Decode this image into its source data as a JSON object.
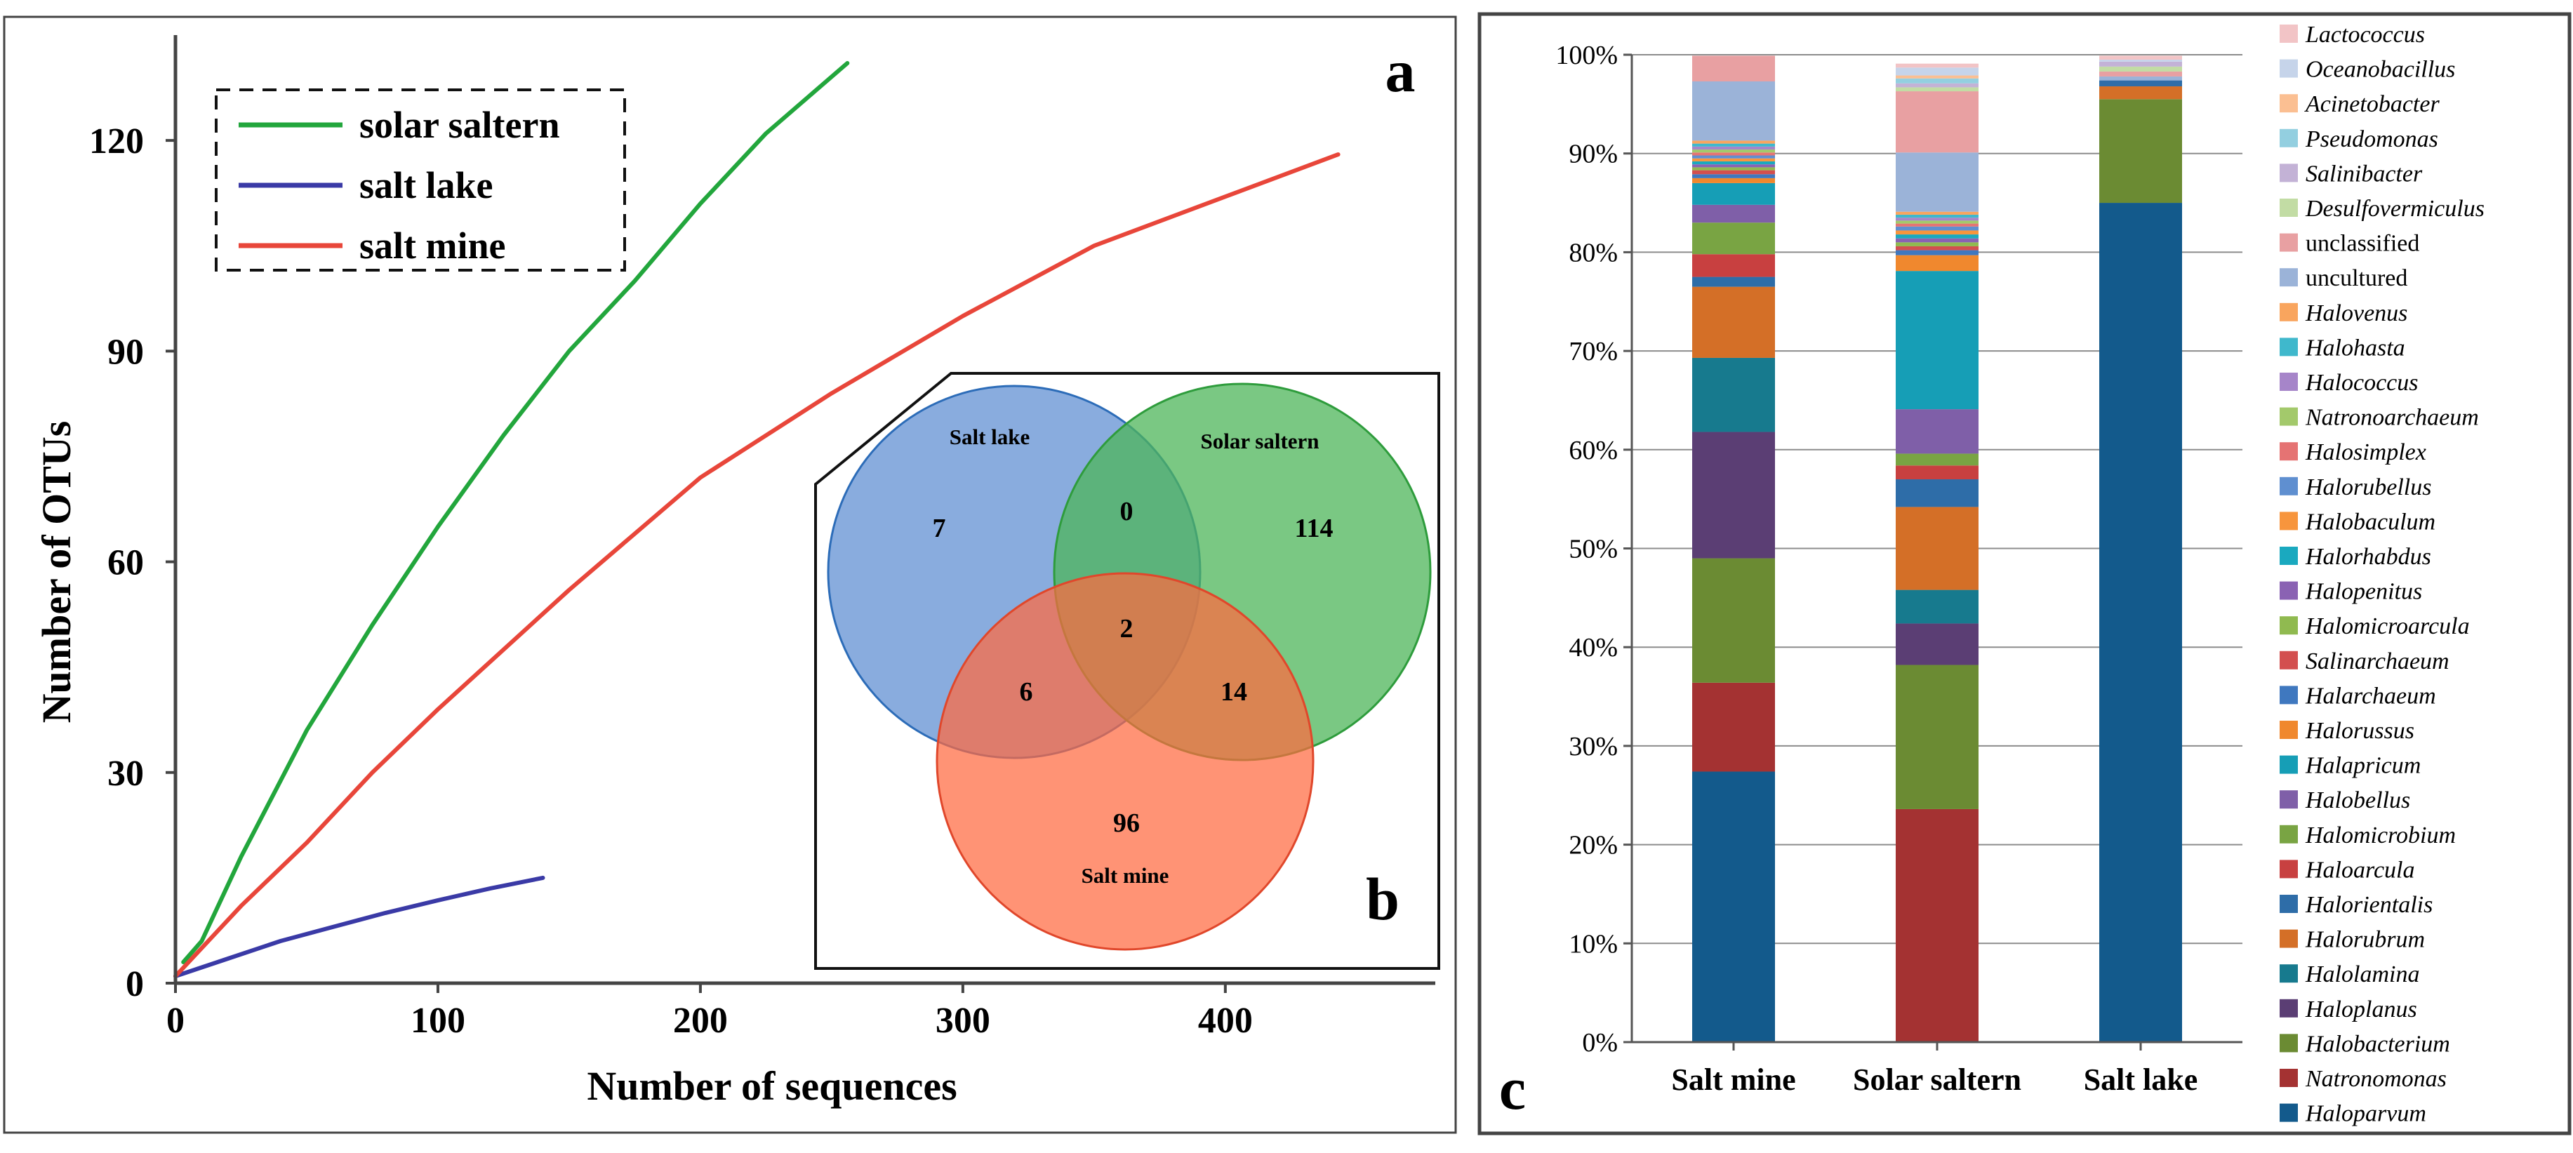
{
  "chart_data": [
    {
      "type": "line",
      "panel_label": "a",
      "xlabel": "Number of sequences",
      "ylabel": "Number of OTUs",
      "xlim": [
        0,
        480
      ],
      "ylim": [
        0,
        135
      ],
      "xticks": [
        0,
        100,
        200,
        300,
        400
      ],
      "yticks": [
        0,
        30,
        60,
        90,
        120
      ],
      "legend": {
        "placement": "top-left",
        "entries": [
          "solar saltern",
          "salt lake",
          "salt mine"
        ]
      },
      "series": [
        {
          "name": "solar saltern",
          "color": "#22a63c",
          "x": [
            3,
            10,
            25,
            50,
            75,
            100,
            125,
            150,
            175,
            200,
            225,
            256
          ],
          "y": [
            3,
            6,
            18,
            36,
            51,
            65,
            78,
            90,
            100,
            111,
            121,
            131
          ]
        },
        {
          "name": "salt lake",
          "color": "#3a3aa6",
          "x": [
            0,
            20,
            40,
            60,
            80,
            100,
            120,
            140
          ],
          "y": [
            1,
            3.5,
            6,
            8,
            10,
            11.8,
            13.5,
            15
          ]
        },
        {
          "name": "salt mine",
          "color": "#e8463a",
          "x": [
            0,
            25,
            50,
            75,
            100,
            150,
            200,
            250,
            300,
            350,
            400,
            443
          ],
          "y": [
            1,
            11,
            20,
            30,
            39,
            56,
            72,
            84,
            95,
            105,
            112,
            118
          ]
        }
      ]
    },
    {
      "type": "venn",
      "panel_label": "b",
      "sets": [
        {
          "name": "Salt lake",
          "color": "#6c97d6"
        },
        {
          "name": "Solar saltern",
          "color": "#4db55a"
        },
        {
          "name": "Salt mine",
          "color": "#ff7a55"
        }
      ],
      "regions": {
        "lake_only": 7,
        "saltern_only": 114,
        "mine_only": 96,
        "lake_saltern": 0,
        "lake_mine": 6,
        "saltern_mine": 14,
        "all_three": 2
      }
    },
    {
      "type": "bar",
      "stacked": true,
      "panel_label": "c",
      "categories": [
        "Salt mine",
        "Solar saltern",
        "Salt lake"
      ],
      "ylim": [
        0,
        100
      ],
      "ytick_labels": [
        "0%",
        "10%",
        "20%",
        "30%",
        "40%",
        "50%",
        "60%",
        "70%",
        "80%",
        "90%",
        "100%"
      ],
      "legend": {
        "placement": "right"
      },
      "series": [
        {
          "name": "Haloparvum",
          "color": "#135a8c",
          "values": [
            27.4,
            0,
            85
          ]
        },
        {
          "name": "Natronomonas",
          "color": "#a43232",
          "values": [
            9,
            23.6,
            0
          ]
        },
        {
          "name": "Halobacterium",
          "color": "#6b8b33",
          "values": [
            12.6,
            14.6,
            10.5
          ]
        },
        {
          "name": "Haloplanus",
          "color": "#5b3e74",
          "values": [
            12.8,
            4.2,
            0
          ]
        },
        {
          "name": "Halolamina",
          "color": "#177a8e",
          "values": [
            7.5,
            3.4,
            0
          ]
        },
        {
          "name": "Halorubrum",
          "color": "#d46f27",
          "values": [
            7.2,
            8.4,
            1.3
          ]
        },
        {
          "name": "Halorientalis",
          "color": "#2e6da8",
          "values": [
            1,
            2.8,
            0.6
          ]
        },
        {
          "name": "Haloarcula",
          "color": "#c84040",
          "values": [
            2.3,
            1.4,
            0
          ]
        },
        {
          "name": "Halomicrobium",
          "color": "#79a443",
          "values": [
            3.2,
            1.2,
            0
          ]
        },
        {
          "name": "Halobellus",
          "color": "#7f5fa8",
          "values": [
            1.8,
            4.5,
            0
          ]
        },
        {
          "name": "Halapricum",
          "color": "#169eb6",
          "values": [
            2.2,
            14,
            0
          ]
        },
        {
          "name": "Halorussus",
          "color": "#f0882e",
          "values": [
            0.5,
            1.6,
            0
          ]
        },
        {
          "name": "Halarchaeum",
          "color": "#3f78bf",
          "values": [
            0.4,
            0.5,
            0
          ]
        },
        {
          "name": "Salinarchaeum",
          "color": "#d34f4f",
          "values": [
            0.4,
            0.4,
            0
          ]
        },
        {
          "name": "Halomicroarcula",
          "color": "#90ba50",
          "values": [
            0.3,
            0.4,
            0
          ]
        },
        {
          "name": "Halopenitus",
          "color": "#8a62b3",
          "values": [
            0.3,
            0.4,
            0
          ]
        },
        {
          "name": "Halorhabdus",
          "color": "#1aa9bf",
          "values": [
            0.3,
            0.4,
            0
          ]
        },
        {
          "name": "Halobaculum",
          "color": "#f7953d",
          "values": [
            0.3,
            0.4,
            0
          ]
        },
        {
          "name": "Halorubellus",
          "color": "#5f8fd0",
          "values": [
            0.3,
            0.4,
            0
          ]
        },
        {
          "name": "Halosimplex",
          "color": "#e57373",
          "values": [
            0.3,
            0.3,
            0
          ]
        },
        {
          "name": "Natronoarchaeum",
          "color": "#a3c96b",
          "values": [
            0.3,
            0.3,
            0
          ]
        },
        {
          "name": "Halococcus",
          "color": "#a685c9",
          "values": [
            0.3,
            0.3,
            0
          ]
        },
        {
          "name": "Halohasta",
          "color": "#3fb8cc",
          "values": [
            0.3,
            0.3,
            0
          ]
        },
        {
          "name": "Halovenus",
          "color": "#f9a55e",
          "values": [
            0.3,
            0.3,
            0
          ]
        },
        {
          "name": "uncultured",
          "color": "#9bb3d8",
          "values": [
            6,
            6,
            0.4
          ]
        },
        {
          "name": "unclassified",
          "color": "#e8a0a2",
          "values": [
            2.6,
            6.2,
            0.5
          ]
        },
        {
          "name": "Desulfovermiculus",
          "color": "#c2dca4",
          "values": [
            0,
            0.4,
            0.5
          ]
        },
        {
          "name": "Salinibacter",
          "color": "#c3b2d6",
          "values": [
            0,
            0.4,
            0.5
          ]
        },
        {
          "name": "Pseudomonas",
          "color": "#93cfe0",
          "values": [
            0,
            0.5,
            0
          ]
        },
        {
          "name": "Acinetobacter",
          "color": "#fbbf92",
          "values": [
            0,
            0.3,
            0
          ]
        },
        {
          "name": "Oceanobacillus",
          "color": "#c6d4ea",
          "values": [
            0,
            0.8,
            0.2
          ]
        },
        {
          "name": "Lactococcus",
          "color": "#f2c4c6",
          "values": [
            0,
            0.4,
            0.4
          ]
        }
      ]
    }
  ]
}
